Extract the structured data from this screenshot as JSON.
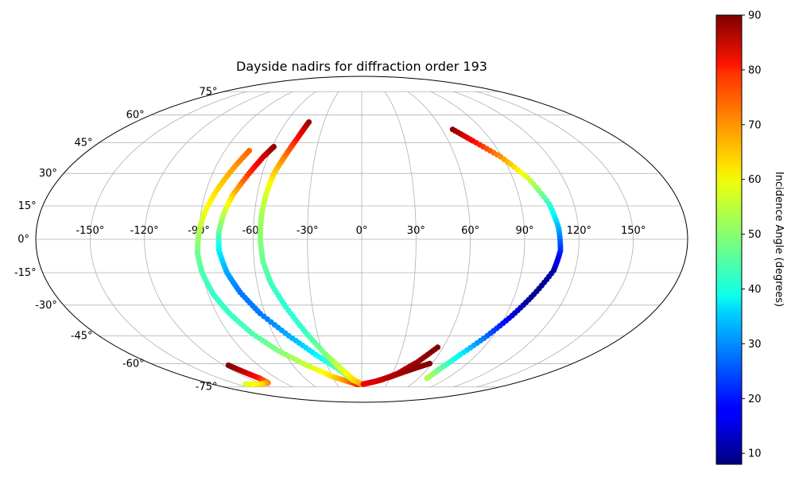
{
  "chart_data": {
    "type": "scatter",
    "projection": "mollweide",
    "title": "Dayside nadirs for diffraction order 193",
    "grid": true,
    "x_tick_labels": [
      {
        "value": -150,
        "label": "-150°"
      },
      {
        "value": -120,
        "label": "-120°"
      },
      {
        "value": -90,
        "label": "-90°"
      },
      {
        "value": -60,
        "label": "-60°"
      },
      {
        "value": -30,
        "label": "-30°"
      },
      {
        "value": 0,
        "label": "0°"
      },
      {
        "value": 30,
        "label": "30°"
      },
      {
        "value": 60,
        "label": "60°"
      },
      {
        "value": 90,
        "label": "90°"
      },
      {
        "value": 120,
        "label": "120°"
      },
      {
        "value": 150,
        "label": "150°"
      }
    ],
    "y_tick_labels": [
      {
        "value": 75,
        "label": "75°"
      },
      {
        "value": 60,
        "label": "60°"
      },
      {
        "value": 45,
        "label": "45°"
      },
      {
        "value": 30,
        "label": "30°"
      },
      {
        "value": 15,
        "label": "15°"
      },
      {
        "value": 0,
        "label": "0°"
      },
      {
        "value": -15,
        "label": "-15°"
      },
      {
        "value": -30,
        "label": "-30°"
      },
      {
        "value": -45,
        "label": "-45°"
      },
      {
        "value": -60,
        "label": "-60°"
      },
      {
        "value": -75,
        "label": "-75°"
      }
    ],
    "colorbar": {
      "label": "Incidence Angle (degrees)",
      "colormap": "jet",
      "range": [
        8,
        90
      ],
      "ticks": [
        {
          "value": 10,
          "label": "10"
        },
        {
          "value": 20,
          "label": "20"
        },
        {
          "value": 30,
          "label": "30"
        },
        {
          "value": 40,
          "label": "40"
        },
        {
          "value": 50,
          "label": "50"
        },
        {
          "value": 60,
          "label": "60"
        },
        {
          "value": 70,
          "label": "70"
        },
        {
          "value": 80,
          "label": "80"
        },
        {
          "value": 90,
          "label": "90"
        }
      ]
    },
    "series": [
      {
        "points": [
          {
            "lon": -74,
            "lat": 41,
            "inc": 72
          },
          {
            "lon": -79,
            "lat": 32,
            "inc": 67
          },
          {
            "lon": -84,
            "lat": 22,
            "inc": 62
          },
          {
            "lon": -88,
            "lat": 12,
            "inc": 58
          },
          {
            "lon": -90,
            "lat": 3,
            "inc": 53
          },
          {
            "lon": -91,
            "lat": -6,
            "inc": 48
          },
          {
            "lon": -90,
            "lat": -15,
            "inc": 45
          },
          {
            "lon": -87,
            "lat": -25,
            "inc": 43
          },
          {
            "lon": -82,
            "lat": -34,
            "inc": 43
          },
          {
            "lon": -74,
            "lat": -44,
            "inc": 45
          },
          {
            "lon": -63,
            "lat": -53,
            "inc": 49
          },
          {
            "lon": -48,
            "lat": -61,
            "inc": 55
          },
          {
            "lon": -30,
            "lat": -68,
            "inc": 62
          },
          {
            "lon": -16,
            "lat": -71,
            "inc": 69
          },
          {
            "lon": -6,
            "lat": -73,
            "inc": 76
          },
          {
            "lon": 2,
            "lat": -73,
            "inc": 80
          }
        ]
      },
      {
        "points": [
          {
            "lon": -59,
            "lat": 43,
            "inc": 89
          },
          {
            "lon": -63,
            "lat": 38,
            "inc": 84
          },
          {
            "lon": -68,
            "lat": 30,
            "inc": 76
          },
          {
            "lon": -74,
            "lat": 20,
            "inc": 64
          },
          {
            "lon": -77,
            "lat": 12,
            "inc": 55
          },
          {
            "lon": -79,
            "lat": 3,
            "inc": 47
          },
          {
            "lon": -79,
            "lat": -5,
            "inc": 38
          },
          {
            "lon": -76,
            "lat": -15,
            "inc": 32
          },
          {
            "lon": -71,
            "lat": -24,
            "inc": 28
          },
          {
            "lon": -63,
            "lat": -34,
            "inc": 28
          },
          {
            "lon": -50,
            "lat": -45,
            "inc": 32
          },
          {
            "lon": -36,
            "lat": -55,
            "inc": 38
          },
          {
            "lon": -22,
            "lat": -63,
            "inc": 46
          },
          {
            "lon": -10,
            "lat": -70,
            "inc": 52
          },
          {
            "lon": 0,
            "lat": -73,
            "inc": 58
          }
        ]
      },
      {
        "points": [
          {
            "lon": -42,
            "lat": 56,
            "inc": 88
          },
          {
            "lon": -45,
            "lat": 48,
            "inc": 80
          },
          {
            "lon": -49,
            "lat": 39,
            "inc": 71
          },
          {
            "lon": -53,
            "lat": 30,
            "inc": 63
          },
          {
            "lon": -55,
            "lat": 20,
            "inc": 56
          },
          {
            "lon": -56,
            "lat": 10,
            "inc": 52
          },
          {
            "lon": -56,
            "lat": 0,
            "inc": 50
          },
          {
            "lon": -55,
            "lat": -10,
            "inc": 47
          },
          {
            "lon": -52,
            "lat": -20,
            "inc": 44
          },
          {
            "lon": -46,
            "lat": -31,
            "inc": 42
          },
          {
            "lon": -38,
            "lat": -43,
            "inc": 43
          },
          {
            "lon": -29,
            "lat": -54,
            "inc": 49
          },
          {
            "lon": -19,
            "lat": -63,
            "inc": 56
          },
          {
            "lon": -9,
            "lat": -70,
            "inc": 62
          },
          {
            "lon": 0,
            "lat": -73,
            "inc": 65
          },
          {
            "lon": 10,
            "lat": -72,
            "inc": 72
          },
          {
            "lon": 22,
            "lat": -70,
            "inc": 79
          },
          {
            "lon": 35,
            "lat": -66,
            "inc": 84
          },
          {
            "lon": 47,
            "lat": -59,
            "inc": 88
          },
          {
            "lon": 56,
            "lat": -51,
            "inc": 90
          }
        ]
      },
      {
        "points": [
          {
            "lon": 2,
            "lat": -73,
            "inc": 80
          },
          {
            "lon": 16,
            "lat": -71,
            "inc": 83
          },
          {
            "lon": 30,
            "lat": -68,
            "inc": 86
          },
          {
            "lon": 44,
            "lat": -64,
            "inc": 88
          },
          {
            "lon": 58,
            "lat": -60,
            "inc": 90
          }
        ]
      },
      {
        "points": [
          {
            "lon": -116,
            "lat": -61,
            "inc": 90
          },
          {
            "lon": -112,
            "lat": -65,
            "inc": 85
          },
          {
            "lon": -108,
            "lat": -69,
            "inc": 78
          },
          {
            "lon": -109,
            "lat": -72,
            "inc": 70
          },
          {
            "lon": -122,
            "lat": -73,
            "inc": 62
          },
          {
            "lon": -140,
            "lat": -73,
            "inc": 57
          }
        ]
      },
      {
        "points": [
          {
            "lon": 68,
            "lat": 52,
            "inc": 89
          },
          {
            "lon": 77,
            "lat": 46,
            "inc": 80
          },
          {
            "lon": 89,
            "lat": 38,
            "inc": 68
          },
          {
            "lon": 99,
            "lat": 28,
            "inc": 56
          },
          {
            "lon": 106,
            "lat": 16,
            "inc": 43
          },
          {
            "lon": 109,
            "lat": 5,
            "inc": 33
          },
          {
            "lon": 110,
            "lat": -5,
            "inc": 22
          },
          {
            "lon": 108,
            "lat": -14,
            "inc": 12
          },
          {
            "lon": 101,
            "lat": -25,
            "inc": 9
          },
          {
            "lon": 94,
            "lat": -35,
            "inc": 15
          },
          {
            "lon": 86,
            "lat": -45,
            "inc": 26
          },
          {
            "lon": 77,
            "lat": -55,
            "inc": 38
          },
          {
            "lon": 71,
            "lat": -63,
            "inc": 46
          },
          {
            "lon": 69,
            "lat": -69,
            "inc": 53
          }
        ]
      }
    ]
  }
}
